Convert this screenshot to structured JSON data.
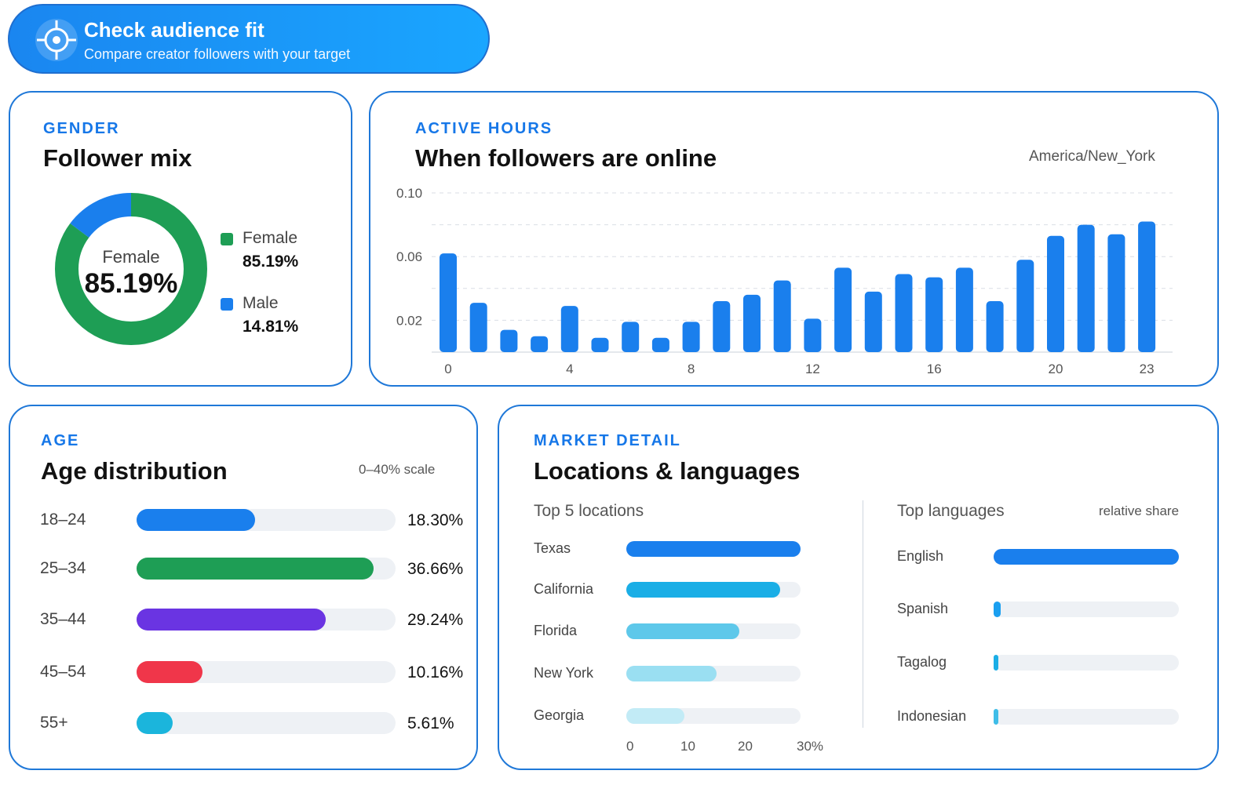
{
  "header": {
    "title": "Check audience fit",
    "subtitle": "Compare creator followers with your target",
    "icon": "crosshair-icon"
  },
  "gender": {
    "eyebrow": "GENDER",
    "title": "Follower mix",
    "center_label": "Female",
    "center_value": "85.19%",
    "items": [
      {
        "name": "Female",
        "value": "85.19%",
        "share": 85.19,
        "color": "#1e9e55"
      },
      {
        "name": "Male",
        "value": "14.81%",
        "share": 14.81,
        "color": "#1a7fed"
      }
    ]
  },
  "active_hours": {
    "eyebrow": "ACTIVE HOURS",
    "title": "When followers are online",
    "timezone": "America/New_York",
    "chart_data": {
      "type": "bar",
      "x": [
        0,
        1,
        2,
        3,
        4,
        5,
        6,
        7,
        8,
        9,
        10,
        11,
        12,
        13,
        14,
        15,
        16,
        17,
        18,
        19,
        20,
        21,
        22,
        23
      ],
      "values": [
        0.062,
        0.031,
        0.014,
        0.01,
        0.029,
        0.009,
        0.019,
        0.009,
        0.019,
        0.032,
        0.036,
        0.045,
        0.021,
        0.053,
        0.038,
        0.049,
        0.047,
        0.053,
        0.032,
        0.058,
        0.073,
        0.08,
        0.074,
        0.082
      ],
      "x_tick_labels": [
        "0",
        "4",
        "8",
        "12",
        "16",
        "20",
        "23"
      ],
      "y_tick_labels": [
        "0.10",
        "0.06",
        "0.02"
      ],
      "ylim": [
        0,
        0.1
      ],
      "grid": true,
      "color": "#1a7fed"
    }
  },
  "age": {
    "eyebrow": "AGE",
    "title": "Age distribution",
    "scale_note": "0–40% scale",
    "items": [
      {
        "label": "18–24",
        "value": "18.30%",
        "pct": 18.3,
        "color": "#1a7fed"
      },
      {
        "label": "25–34",
        "value": "36.66%",
        "pct": 36.66,
        "color": "#1e9e55"
      },
      {
        "label": "35–44",
        "value": "29.24%",
        "pct": 29.24,
        "color": "#6a34e2"
      },
      {
        "label": "45–54",
        "value": "10.16%",
        "pct": 10.16,
        "color": "#f0364a"
      },
      {
        "label": "55+",
        "value": "5.61%",
        "pct": 5.61,
        "color": "#1bb5dc"
      }
    ]
  },
  "market": {
    "eyebrow": "MARKET DETAIL",
    "title": "Locations & languages",
    "locations_title": "Top 5 locations",
    "locations": [
      {
        "label": "Texas",
        "pct": 30,
        "color": "#1a7fed"
      },
      {
        "label": "California",
        "pct": 26.5,
        "color": "#1aaee6"
      },
      {
        "label": "Florida",
        "pct": 19.5,
        "color": "#5ec8ea"
      },
      {
        "label": "New York",
        "pct": 15.5,
        "color": "#9adff2"
      },
      {
        "label": "Georgia",
        "pct": 10,
        "color": "#c2ebf6"
      }
    ],
    "location_ticks": [
      "0",
      "10",
      "20",
      "30%"
    ],
    "languages_title": "Top languages",
    "languages_note": "relative share",
    "languages": [
      {
        "label": "English",
        "share": 1.0,
        "color": "#1a7fed"
      },
      {
        "label": "Spanish",
        "share": 0.04,
        "color": "#1a9ff0"
      },
      {
        "label": "Tagalog",
        "share": 0.025,
        "color": "#1aaee6"
      },
      {
        "label": "Indonesian",
        "share": 0.02,
        "color": "#3fbde8"
      }
    ]
  }
}
